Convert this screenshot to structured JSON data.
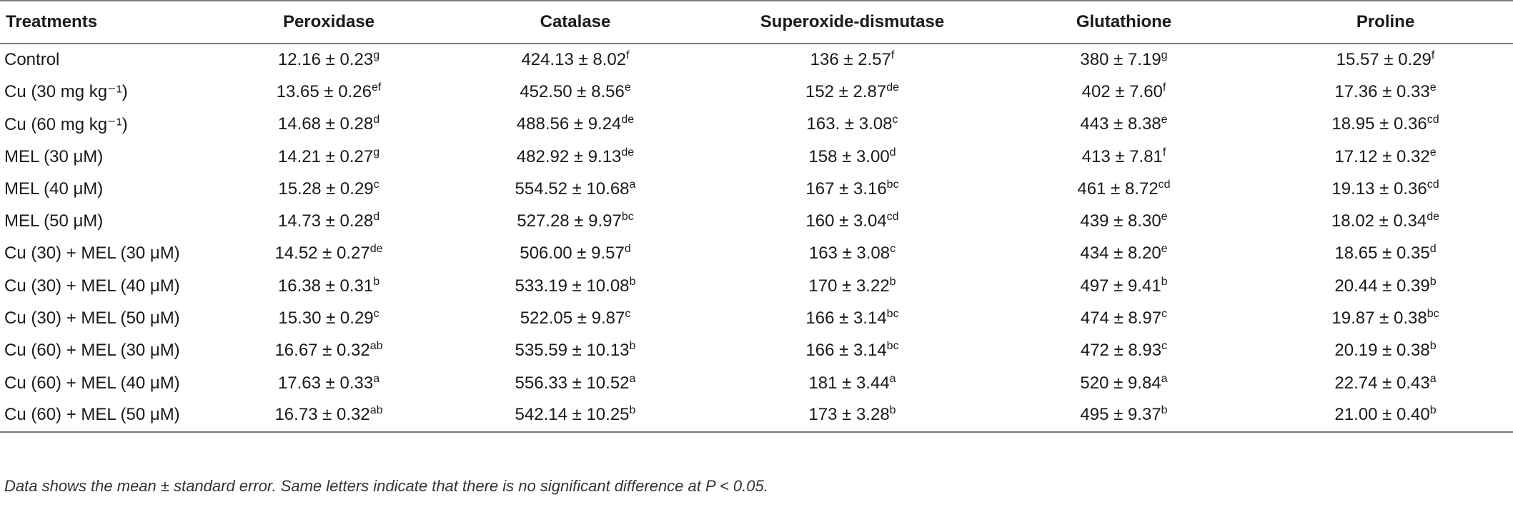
{
  "headers": [
    "Treatments",
    "Peroxidase",
    "Catalase",
    "Superoxide-dismutase",
    "Glutathione",
    "Proline"
  ],
  "rows": [
    {
      "treatment": "Control",
      "cells": [
        {
          "v": "12.16 ± 0.23",
          "s": "g"
        },
        {
          "v": "424.13 ± 8.02",
          "s": "f"
        },
        {
          "v": "136 ± 2.57",
          "s": "f"
        },
        {
          "v": "380 ± 7.19",
          "s": "g"
        },
        {
          "v": "15.57 ± 0.29",
          "s": "f"
        }
      ]
    },
    {
      "treatment": "Cu (30 mg kg⁻¹)",
      "cells": [
        {
          "v": "13.65 ± 0.26",
          "s": "ef"
        },
        {
          "v": "452.50 ± 8.56",
          "s": "e"
        },
        {
          "v": "152 ± 2.87",
          "s": "de"
        },
        {
          "v": "402 ± 7.60",
          "s": "f"
        },
        {
          "v": "17.36 ± 0.33",
          "s": "e"
        }
      ]
    },
    {
      "treatment": "Cu (60 mg kg⁻¹)",
      "cells": [
        {
          "v": "14.68 ± 0.28",
          "s": "d"
        },
        {
          "v": "488.56 ± 9.24",
          "s": "de"
        },
        {
          "v": "163. ± 3.08",
          "s": "c"
        },
        {
          "v": "443 ± 8.38",
          "s": "e"
        },
        {
          "v": "18.95 ± 0.36",
          "s": "cd"
        }
      ]
    },
    {
      "treatment": "MEL (30 μM)",
      "cells": [
        {
          "v": "14.21 ± 0.27",
          "s": "g"
        },
        {
          "v": "482.92 ± 9.13",
          "s": "de"
        },
        {
          "v": "158 ± 3.00",
          "s": "d"
        },
        {
          "v": "413 ± 7.81",
          "s": "f"
        },
        {
          "v": "17.12 ± 0.32",
          "s": "e"
        }
      ]
    },
    {
      "treatment": "MEL (40 μM)",
      "cells": [
        {
          "v": "15.28 ± 0.29",
          "s": "c"
        },
        {
          "v": "554.52 ± 10.68",
          "s": "a"
        },
        {
          "v": "167 ± 3.16",
          "s": "bc"
        },
        {
          "v": "461 ± 8.72",
          "s": "cd"
        },
        {
          "v": "19.13 ± 0.36",
          "s": "cd"
        }
      ]
    },
    {
      "treatment": "MEL (50 μM)",
      "cells": [
        {
          "v": "14.73 ± 0.28",
          "s": "d"
        },
        {
          "v": "527.28 ± 9.97",
          "s": "bc"
        },
        {
          "v": "160 ± 3.04",
          "s": "cd"
        },
        {
          "v": "439 ± 8.30",
          "s": "e"
        },
        {
          "v": "18.02 ± 0.34",
          "s": "de"
        }
      ]
    },
    {
      "treatment": "Cu (30) + MEL (30 μM)",
      "cells": [
        {
          "v": "14.52 ± 0.27",
          "s": "de"
        },
        {
          "v": "506.00 ± 9.57",
          "s": "d"
        },
        {
          "v": "163 ± 3.08",
          "s": "c"
        },
        {
          "v": "434 ± 8.20",
          "s": "e"
        },
        {
          "v": "18.65 ± 0.35",
          "s": "d"
        }
      ]
    },
    {
      "treatment": "Cu (30) + MEL (40 μM)",
      "cells": [
        {
          "v": "16.38 ± 0.31",
          "s": "b"
        },
        {
          "v": "533.19 ± 10.08",
          "s": "b"
        },
        {
          "v": "170 ± 3.22",
          "s": "b"
        },
        {
          "v": "497 ± 9.41",
          "s": "b"
        },
        {
          "v": "20.44 ± 0.39",
          "s": "b"
        }
      ]
    },
    {
      "treatment": "Cu (30) + MEL (50 μM)",
      "cells": [
        {
          "v": "15.30 ± 0.29",
          "s": "c"
        },
        {
          "v": "522.05 ± 9.87",
          "s": "c"
        },
        {
          "v": "166 ± 3.14",
          "s": "bc"
        },
        {
          "v": "474 ± 8.97",
          "s": "c"
        },
        {
          "v": "19.87 ± 0.38",
          "s": "bc"
        }
      ]
    },
    {
      "treatment": "Cu (60) + MEL (30 μM)",
      "cells": [
        {
          "v": "16.67 ± 0.32",
          "s": "ab"
        },
        {
          "v": "535.59 ± 10.13",
          "s": "b"
        },
        {
          "v": "166 ± 3.14",
          "s": "bc"
        },
        {
          "v": "472 ± 8.93",
          "s": "c"
        },
        {
          "v": "20.19 ± 0.38",
          "s": "b"
        }
      ]
    },
    {
      "treatment": "Cu (60) + MEL (40 μM)",
      "cells": [
        {
          "v": "17.63 ± 0.33",
          "s": "a"
        },
        {
          "v": "556.33 ± 10.52",
          "s": "a"
        },
        {
          "v": "181 ± 3.44",
          "s": "a"
        },
        {
          "v": "520 ± 9.84",
          "s": "a"
        },
        {
          "v": "22.74 ± 0.43",
          "s": "a"
        }
      ]
    },
    {
      "treatment": "Cu (60) + MEL (50 μM)",
      "cells": [
        {
          "v": "16.73 ± 0.32",
          "s": "ab"
        },
        {
          "v": "542.14 ± 10.25",
          "s": "b"
        },
        {
          "v": "173 ± 3.28",
          "s": "b"
        },
        {
          "v": "495 ± 9.37",
          "s": "b"
        },
        {
          "v": "21.00 ± 0.40",
          "s": "b"
        }
      ]
    }
  ],
  "footnote": "Data shows the mean ± standard error. Same letters indicate that there is no significant difference at P < 0.05."
}
